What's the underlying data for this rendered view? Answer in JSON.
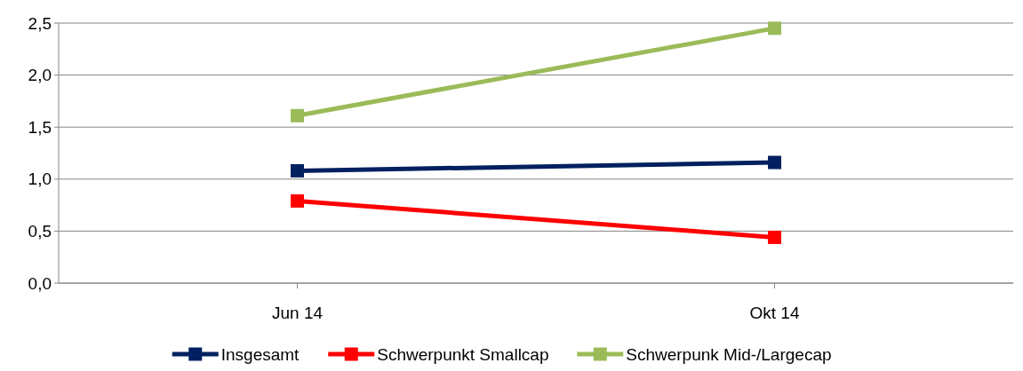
{
  "chart_data": {
    "type": "line",
    "categories": [
      "Jun 14",
      "Okt 14"
    ],
    "series": [
      {
        "name": "Insgesamt",
        "color": "#002060",
        "values": [
          1.08,
          1.16
        ]
      },
      {
        "name": "Schwerpunkt Smallcap",
        "color": "#ff0000",
        "values": [
          0.79,
          0.44
        ]
      },
      {
        "name": "Schwerpunk Mid-/Largecap",
        "color": "#9bbb59",
        "values": [
          1.61,
          2.45
        ]
      }
    ],
    "ylim": [
      0,
      2.5
    ],
    "yticks": [
      {
        "value": 0,
        "label": "0,0"
      },
      {
        "value": 0.5,
        "label": "0,5"
      },
      {
        "value": 1,
        "label": "1,0"
      },
      {
        "value": 1.5,
        "label": "1,5"
      },
      {
        "value": 2,
        "label": "2,0"
      },
      {
        "value": 2.5,
        "label": "2,5"
      }
    ],
    "grid": "y",
    "legend": "bottom",
    "marker": "square",
    "line_style": "solid"
  }
}
